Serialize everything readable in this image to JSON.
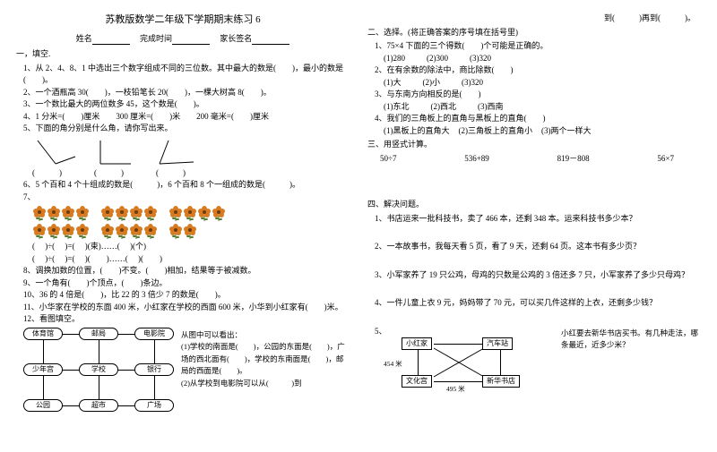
{
  "title": "苏教版数学二年级下学期期末练习 6",
  "nameline": {
    "name": "姓名",
    "time": "完成时间",
    "sign": "家长签名"
  },
  "left": {
    "s1": "一，填空.",
    "q1": "1、从 2、4、8、1 中选出三个数字组成不同的三位数。其中最大的数是(　　)，最小的数是(　　)。",
    "q2": "2、一个酒瓶高 30(　　)，一枝铅笔长 20(　　)，一棵大树高 8(　　)。",
    "q3": "3、一个数比最大的两位数多 45，这个数是(　　)。",
    "q4": "4、1 分米=(　　)厘米　　300 厘米=(　　)米　　200 毫米=(　　)厘米",
    "q5": "5、下面的角分别是什么角，请你写出来。",
    "angle_blanks": "(　　　)　　　　(　　　)　　　　(　　　)",
    "q6": "6、5 个百和 4 个十组成的数是(　　　)，6 个百和 8 个一组成的数是(　　　)。",
    "q7": "7、",
    "prow1": "(　 )÷(　 )=(　 )(束)……(　 )(个)",
    "prow2": "(　 )÷(　 )=(　 )(　　)……(　 )(　　)",
    "q8": "8、调换加数的位置，(　　)不变。(　　)相加，结果等于被减数。",
    "q9": "9、一个角有(　　)个顶点，(　　)条边。",
    "q10": "10、36 的 4 倍是(　　)，比 22 的 3 倍少 7 的数是(　　)。",
    "q11": "11、小华家在学校的东面 400 米，小红家在学校的西面 600 米，小华到小红家有(　　)米。",
    "q12a": "12、看图填空。",
    "places": {
      "p00": "体育馆",
      "p01": "邮局",
      "p02": "电影院",
      "p10": "少年宫",
      "p11": "学校",
      "p12": "银行",
      "p20": "公园",
      "p21": "超市",
      "p22": "广场"
    },
    "q12text": "从图中可以看出：\n(1)学校的南面是(　　)，公园的东面是(　　)，广场的西北面有(　　)，学校的东南面是(　　)，邮局的西面是(　　)。\n(2)从学校到电影院可以从(　　　)到"
  },
  "right_top": "到(　　　)再到(　　　)。",
  "right": {
    "s2": "二、选择。(将正确答案的序号填在括号里)",
    "r1": "1、75×4 下面的三个得数(　　)个可能是正确的。",
    "r1o": {
      "a": "(1)280",
      "b": "(2)300",
      "c": "(3)320"
    },
    "r2": "2、在有余数的除法中，商比除数(　　)",
    "r2o": {
      "a": "(1)大",
      "b": "(2)小",
      "c": "(3)320"
    },
    "r3": "3、与东南方向相反的是(　　)",
    "r3o": {
      "a": "(1)东北",
      "b": "(2)西北",
      "c": "(3)西南"
    },
    "r4": "4、我们的三角板上的直角与黑板上的直角(　　)",
    "r4o": {
      "a": "(1)黑板上的直角大",
      "b": "(2)三角板上的直角小",
      "c": "(3)两个一样大"
    },
    "s3": "三、用竖式计算。",
    "calc": {
      "a": "50÷7",
      "b": "536+89",
      "c": "819－808",
      "d": "56×7"
    },
    "s4": "四、解决问题。",
    "p1": "1、书店运来一批科技书，卖了 466 本，还剩 348 本。运来科技书多少本？",
    "p2": "2、一本故事书，我每天看 5 页，看了 9 天，还剩 64 页。这本书有多少页？",
    "p3": "3、小军家养了 19 只公鸡，母鸡的只数是公鸡的 3 倍还多 7 只，小军家养了多少只母鸡？",
    "p4": "4、一件儿童上衣 9 元，妈妈带了 70 元，可以买几件这样的上衣，还剩多少钱？",
    "p5": "5、",
    "p5boxes": {
      "a": "小红家",
      "b": "汽车站",
      "c": "文化宫",
      "d": "新华书店"
    },
    "p5lbl": {
      "l1": "454 米",
      "l2": "495 米"
    },
    "p5text": "小红要去新华书店买书。有几种走法，哪条最近，近多少米？"
  },
  "colors": {
    "flower_petal": "#d87a1f",
    "flower_center": "#6b3a10",
    "flower_leaf": "#4a7a2a"
  }
}
